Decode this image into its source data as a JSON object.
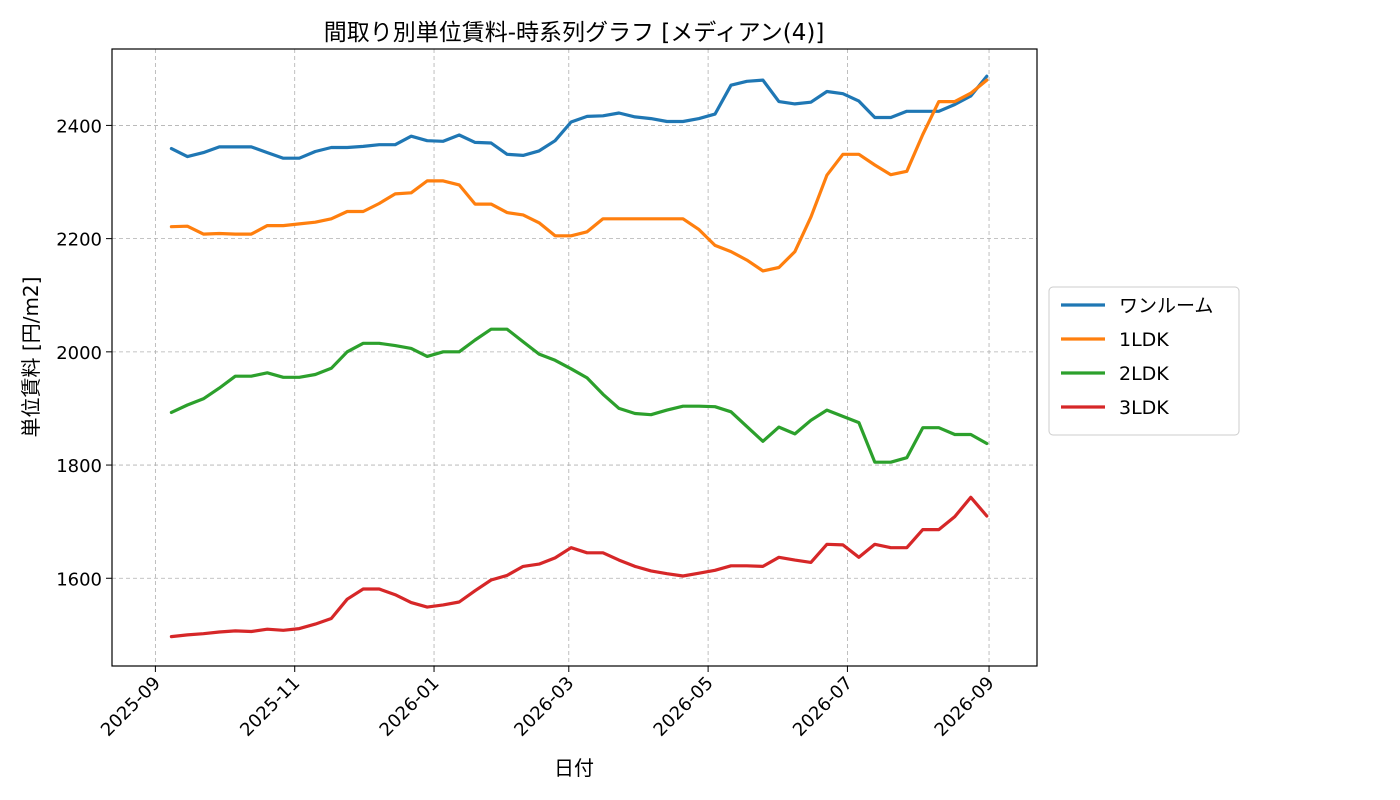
{
  "chart_data": {
    "type": "line",
    "title": "間取り別単位賃料-時系列グラフ [メディアン(4)]",
    "xlabel": "日付",
    "ylabel": "単位賃料 [円/m2]",
    "xlim": [
      "2025-08-13",
      "2026-09-22"
    ],
    "ylim": [
      1445,
      2535
    ],
    "yticks": [
      1600,
      1800,
      2000,
      2200,
      2400
    ],
    "xticks": [
      {
        "date": "2025-09-01",
        "label": "2025-09"
      },
      {
        "date": "2025-11-01",
        "label": "2025-11"
      },
      {
        "date": "2026-01-01",
        "label": "2026-01"
      },
      {
        "date": "2026-03-01",
        "label": "2026-03"
      },
      {
        "date": "2026-05-01",
        "label": "2026-05"
      },
      {
        "date": "2026-07-01",
        "label": "2026-07"
      },
      {
        "date": "2026-09-01",
        "label": "2026-09"
      }
    ],
    "grid": true,
    "legend_position": "right-outside",
    "x": [
      "2025-09-08",
      "2025-09-15",
      "2025-09-22",
      "2025-09-29",
      "2025-10-06",
      "2025-10-13",
      "2025-10-20",
      "2025-10-27",
      "2025-11-03",
      "2025-11-10",
      "2025-11-17",
      "2025-11-24",
      "2025-12-01",
      "2025-12-08",
      "2025-12-15",
      "2025-12-22",
      "2025-12-29",
      "2026-01-05",
      "2026-01-12",
      "2026-01-19",
      "2026-01-26",
      "2026-02-02",
      "2026-02-09",
      "2026-02-16",
      "2026-02-23",
      "2026-03-02",
      "2026-03-09",
      "2026-03-16",
      "2026-03-23",
      "2026-03-30",
      "2026-04-06",
      "2026-04-13",
      "2026-04-20",
      "2026-04-27",
      "2026-05-04",
      "2026-05-11",
      "2026-05-18",
      "2026-05-25",
      "2026-06-01",
      "2026-06-08",
      "2026-06-15",
      "2026-06-22",
      "2026-06-29",
      "2026-07-06",
      "2026-07-13",
      "2026-07-20",
      "2026-07-27",
      "2026-08-03",
      "2026-08-10",
      "2026-08-17",
      "2026-08-24",
      "2026-08-31"
    ],
    "series": [
      {
        "name": "ワンルーム",
        "color": "#1f77b4",
        "values": [
          2359,
          2345,
          2352,
          2362,
          2362,
          2362,
          2352,
          2342,
          2342,
          2354,
          2361,
          2361,
          2363,
          2366,
          2366,
          2381,
          2373,
          2372,
          2383,
          2370,
          2369,
          2349,
          2347,
          2355,
          2373,
          2406,
          2416,
          2417,
          2422,
          2415,
          2412,
          2407,
          2407,
          2412,
          2420,
          2471,
          2478,
          2480,
          2442,
          2438,
          2441,
          2460,
          2456,
          2443,
          2414,
          2414,
          2425,
          2425,
          2425,
          2437,
          2452,
          2487
        ]
      },
      {
        "name": "1LDK",
        "color": "#ff7f0e",
        "values": [
          2221,
          2222,
          2208,
          2209,
          2208,
          2208,
          2223,
          2223,
          2226,
          2229,
          2235,
          2248,
          2248,
          2262,
          2279,
          2281,
          2302,
          2302,
          2295,
          2261,
          2261,
          2246,
          2242,
          2228,
          2205,
          2205,
          2212,
          2235,
          2235,
          2235,
          2235,
          2235,
          2235,
          2216,
          2188,
          2177,
          2162,
          2143,
          2149,
          2177,
          2238,
          2312,
          2349,
          2349,
          2330,
          2313,
          2319,
          2384,
          2442,
          2442,
          2457,
          2480
        ]
      },
      {
        "name": "2LDK",
        "color": "#2ca02c",
        "values": [
          1893,
          1906,
          1917,
          1936,
          1957,
          1957,
          1963,
          1955,
          1955,
          1960,
          1971,
          2000,
          2015,
          2015,
          2011,
          2006,
          1992,
          2000,
          2000,
          2021,
          2040,
          2040,
          2018,
          1996,
          1985,
          1970,
          1954,
          1925,
          1900,
          1891,
          1889,
          1897,
          1904,
          1904,
          1903,
          1894,
          1868,
          1842,
          1867,
          1855,
          1879,
          1897,
          1886,
          1875,
          1805,
          1805,
          1813,
          1866,
          1866,
          1854,
          1854,
          1838
        ]
      },
      {
        "name": "3LDK",
        "color": "#d62728",
        "values": [
          1497,
          1500,
          1502,
          1505,
          1507,
          1506,
          1510,
          1508,
          1511,
          1519,
          1529,
          1563,
          1581,
          1581,
          1571,
          1557,
          1549,
          1553,
          1558,
          1578,
          1597,
          1605,
          1621,
          1625,
          1636,
          1654,
          1645,
          1645,
          1632,
          1621,
          1613,
          1608,
          1604,
          1609,
          1614,
          1622,
          1622,
          1621,
          1637,
          1632,
          1628,
          1660,
          1659,
          1637,
          1660,
          1654,
          1654,
          1686,
          1686,
          1709,
          1743,
          1710
        ]
      }
    ]
  }
}
